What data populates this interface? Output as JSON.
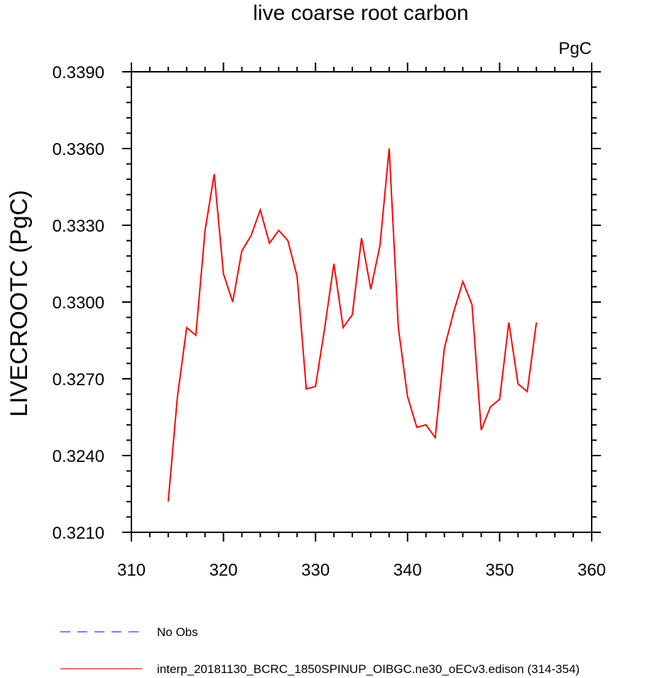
{
  "chart_data": {
    "type": "line",
    "title": "live coarse root carbon",
    "units": "PgC",
    "xlabel": "",
    "ylabel": "LIVECROOTC  (PgC)",
    "xlim": [
      310,
      360
    ],
    "ylim": [
      0.321,
      0.339
    ],
    "x_ticks": [
      310,
      320,
      330,
      340,
      350,
      360
    ],
    "x_tick_labels": [
      "310",
      "320",
      "330",
      "340",
      "350",
      "360"
    ],
    "x_minor_step": 2,
    "y_ticks": [
      0.321,
      0.324,
      0.327,
      0.33,
      0.333,
      0.336,
      0.339
    ],
    "y_tick_labels": [
      "0.3210",
      "0.3240",
      "0.3270",
      "0.3300",
      "0.3330",
      "0.3360",
      "0.3390"
    ],
    "y_minor_step": 0.0006,
    "grid": false,
    "legend_position": "bottom",
    "series": [
      {
        "name": "No Obs",
        "color": "#3333ff",
        "dash": "dashed",
        "x": [],
        "y": []
      },
      {
        "name": "interp_20181130_BCRC_1850SPINUP_OIBGC.ne30_oECv3.edison (314-354)",
        "color": "#ff0000",
        "dash": "solid",
        "x": [
          314,
          315,
          316,
          317,
          318,
          319,
          320,
          321,
          322,
          323,
          324,
          325,
          326,
          327,
          328,
          329,
          330,
          331,
          332,
          333,
          334,
          335,
          336,
          337,
          338,
          339,
          340,
          341,
          342,
          343,
          344,
          345,
          346,
          347,
          348,
          349,
          350,
          351,
          352,
          353,
          354
        ],
        "y": [
          0.3222,
          0.3263,
          0.329,
          0.3287,
          0.3328,
          0.335,
          0.3311,
          0.33,
          0.332,
          0.3326,
          0.3336,
          0.3323,
          0.3328,
          0.3324,
          0.331,
          0.3266,
          0.3267,
          0.329,
          0.3315,
          0.329,
          0.3295,
          0.3325,
          0.3305,
          0.3322,
          0.336,
          0.329,
          0.3263,
          0.3251,
          0.3252,
          0.3247,
          0.3282,
          0.3296,
          0.3308,
          0.3299,
          0.325,
          0.3259,
          0.3262,
          0.3292,
          0.3268,
          0.3265,
          0.3292
        ]
      }
    ]
  }
}
